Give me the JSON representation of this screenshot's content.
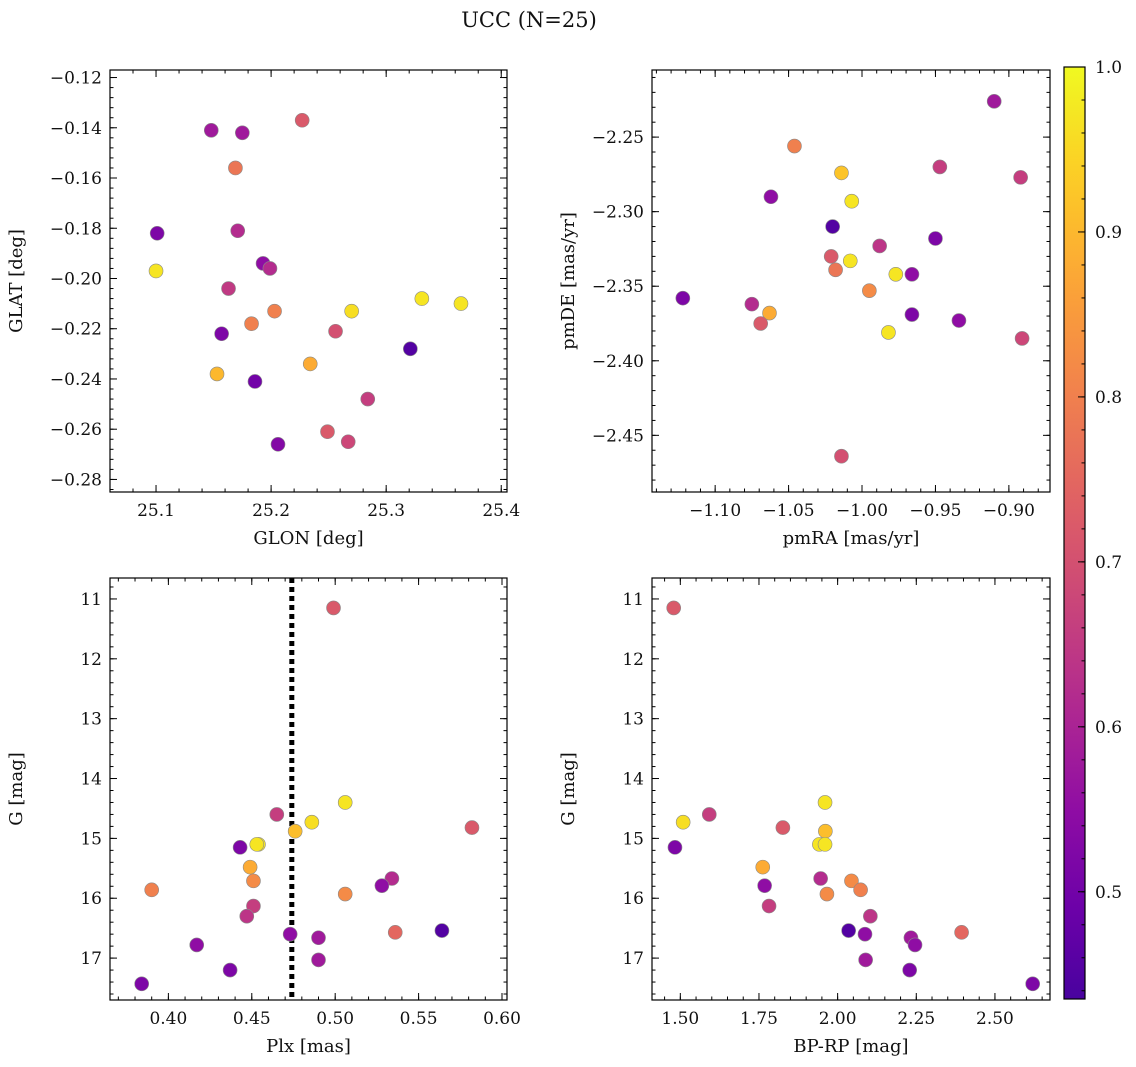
{
  "figure": {
    "title": "UCC (N=25)"
  },
  "colorbar": {
    "cmap": "plasma",
    "range": [
      0.435,
      1.0
    ],
    "ticks": [
      0.5,
      0.6,
      0.7,
      0.8,
      0.9,
      1.0
    ],
    "tick_labels": [
      "0.5",
      "0.6",
      "0.7",
      "0.8",
      "0.9",
      "1.0"
    ]
  },
  "chart_data": [
    {
      "type": "scatter",
      "xlabel": "GLON [deg]",
      "ylabel": "GLAT [deg]",
      "xlim": [
        25.06,
        25.405
      ],
      "ylim": [
        -0.285,
        -0.117
      ],
      "xticks": [
        25.1,
        25.2,
        25.3,
        25.4
      ],
      "xtick_labels": [
        "25.1",
        "25.2",
        "25.3",
        "25.4"
      ],
      "yticks": [
        -0.28,
        -0.26,
        -0.24,
        -0.22,
        -0.2,
        -0.18,
        -0.16,
        -0.14,
        -0.12
      ],
      "ytick_labels": [
        "−0.28",
        "−0.26",
        "−0.24",
        "−0.22",
        "−0.20",
        "−0.18",
        "−0.16",
        "−0.14",
        "−0.12"
      ],
      "x": [
        25.148,
        25.175,
        25.227,
        25.169,
        25.101,
        25.171,
        25.1,
        25.193,
        25.199,
        25.163,
        25.203,
        25.183,
        25.157,
        25.27,
        25.331,
        25.365,
        25.256,
        25.234,
        25.153,
        25.186,
        25.321,
        25.284,
        25.249,
        25.267,
        25.206
      ],
      "y": [
        -0.141,
        -0.142,
        -0.137,
        -0.156,
        -0.182,
        -0.181,
        -0.197,
        -0.194,
        -0.196,
        -0.204,
        -0.213,
        -0.218,
        -0.222,
        -0.213,
        -0.208,
        -0.21,
        -0.221,
        -0.234,
        -0.238,
        -0.241,
        -0.228,
        -0.248,
        -0.261,
        -0.265,
        -0.266
      ],
      "c": [
        0.58,
        0.58,
        0.72,
        0.78,
        0.52,
        0.62,
        0.97,
        0.55,
        0.62,
        0.65,
        0.8,
        0.8,
        0.52,
        0.96,
        0.97,
        0.97,
        0.7,
        0.88,
        0.9,
        0.5,
        0.45,
        0.66,
        0.72,
        0.68,
        0.53
      ]
    },
    {
      "type": "scatter",
      "xlabel": "pmRA [mas/yr]",
      "ylabel": "pmDE [mas/yr]",
      "xlim": [
        -1.143,
        -0.872
      ],
      "ylim": [
        -2.488,
        -2.205
      ],
      "xticks": [
        -1.1,
        -1.05,
        -1.0,
        -0.95,
        -0.9
      ],
      "xtick_labels": [
        "−1.10",
        "−1.05",
        "−1.00",
        "−0.95",
        "−0.90"
      ],
      "yticks": [
        -2.45,
        -2.4,
        -2.35,
        -2.3,
        -2.25
      ],
      "ytick_labels": [
        "−2.45",
        "−2.40",
        "−2.35",
        "−2.30",
        "−2.25"
      ],
      "x": [
        -0.91,
        -1.046,
        -0.947,
        -1.014,
        -0.892,
        -1.062,
        -1.007,
        -1.02,
        -0.95,
        -0.988,
        -1.021,
        -1.008,
        -1.018,
        -0.977,
        -0.966,
        -0.995,
        -1.122,
        -1.075,
        -1.063,
        -1.069,
        -0.966,
        -0.982,
        -0.934,
        -0.891,
        -1.014
      ],
      "y": [
        -2.226,
        -2.256,
        -2.27,
        -2.274,
        -2.277,
        -2.29,
        -2.293,
        -2.31,
        -2.318,
        -2.323,
        -2.33,
        -2.333,
        -2.339,
        -2.342,
        -2.342,
        -2.353,
        -2.358,
        -2.362,
        -2.368,
        -2.375,
        -2.369,
        -2.381,
        -2.373,
        -2.385,
        -2.464
      ],
      "c": [
        0.58,
        0.8,
        0.66,
        0.92,
        0.66,
        0.55,
        0.97,
        0.45,
        0.52,
        0.64,
        0.72,
        0.97,
        0.78,
        0.97,
        0.55,
        0.82,
        0.52,
        0.62,
        0.88,
        0.72,
        0.52,
        0.97,
        0.55,
        0.68,
        0.7
      ]
    },
    {
      "type": "scatter",
      "xlabel": "Plx [mas]",
      "ylabel": "G [mag]",
      "xlim": [
        0.365,
        0.603
      ],
      "ylim": [
        17.7,
        10.65
      ],
      "invert_y": true,
      "xticks": [
        0.4,
        0.45,
        0.5,
        0.55,
        0.6
      ],
      "xtick_labels": [
        "0.40",
        "0.45",
        "0.50",
        "0.55",
        "0.60"
      ],
      "yticks": [
        11,
        12,
        13,
        14,
        15,
        16,
        17
      ],
      "ytick_labels": [
        "11",
        "12",
        "13",
        "14",
        "15",
        "16",
        "17"
      ],
      "vline": 0.474,
      "x": [
        0.499,
        0.506,
        0.465,
        0.486,
        0.582,
        0.476,
        0.443,
        0.454,
        0.453,
        0.449,
        0.534,
        0.451,
        0.528,
        0.39,
        0.506,
        0.451,
        0.447,
        0.536,
        0.564,
        0.473,
        0.49,
        0.417,
        0.49,
        0.437,
        0.384
      ],
      "y": [
        11.15,
        14.4,
        14.6,
        14.73,
        14.82,
        14.88,
        15.15,
        15.1,
        15.1,
        15.48,
        15.67,
        15.71,
        15.79,
        15.86,
        15.93,
        16.13,
        16.3,
        16.57,
        16.54,
        16.6,
        16.66,
        16.78,
        17.03,
        17.2,
        17.43
      ],
      "c": [
        0.72,
        0.97,
        0.66,
        0.96,
        0.72,
        0.91,
        0.52,
        0.97,
        0.97,
        0.88,
        0.62,
        0.82,
        0.55,
        0.8,
        0.82,
        0.66,
        0.64,
        0.75,
        0.45,
        0.55,
        0.58,
        0.55,
        0.58,
        0.52,
        0.52
      ]
    },
    {
      "type": "scatter",
      "xlabel": "BP-RP [mag]",
      "ylabel": "G [mag]",
      "xlim": [
        1.41,
        2.675
      ],
      "ylim": [
        17.7,
        10.65
      ],
      "invert_y": true,
      "xticks": [
        1.5,
        1.75,
        2.0,
        2.25,
        2.5
      ],
      "xtick_labels": [
        "1.50",
        "1.75",
        "2.00",
        "2.25",
        "2.50"
      ],
      "yticks": [
        11,
        12,
        13,
        14,
        15,
        16,
        17
      ],
      "ytick_labels": [
        "11",
        "12",
        "13",
        "14",
        "15",
        "16",
        "17"
      ],
      "x": [
        1.479,
        1.96,
        1.592,
        1.509,
        1.826,
        1.961,
        1.483,
        1.942,
        1.96,
        1.762,
        1.946,
        2.044,
        1.768,
        2.073,
        1.966,
        1.782,
        2.104,
        2.394,
        2.035,
        2.087,
        2.233,
        2.246,
        2.089,
        2.229,
        2.62
      ],
      "y": [
        11.15,
        14.4,
        14.6,
        14.73,
        14.82,
        14.88,
        15.15,
        15.1,
        15.1,
        15.48,
        15.67,
        15.71,
        15.79,
        15.86,
        15.93,
        16.13,
        16.3,
        16.57,
        16.54,
        16.6,
        16.66,
        16.78,
        17.03,
        17.2,
        17.43
      ],
      "c": [
        0.72,
        0.97,
        0.66,
        0.96,
        0.72,
        0.91,
        0.52,
        0.97,
        0.97,
        0.88,
        0.62,
        0.82,
        0.55,
        0.8,
        0.82,
        0.66,
        0.64,
        0.75,
        0.45,
        0.55,
        0.58,
        0.55,
        0.58,
        0.52,
        0.52
      ]
    }
  ]
}
